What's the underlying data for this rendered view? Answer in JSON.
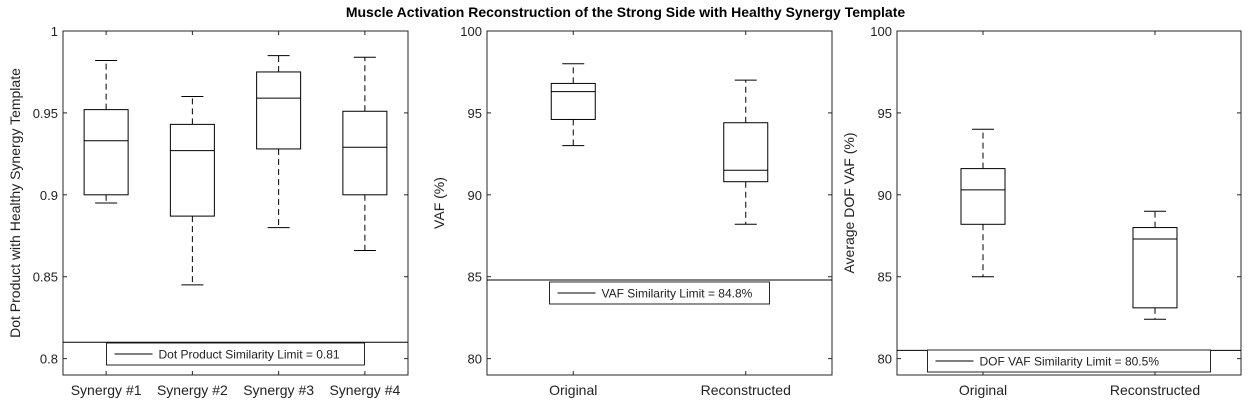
{
  "figure": {
    "title": "Muscle Activation Reconstruction of the Strong Side with Healthy Synergy Template"
  },
  "chart_data": [
    {
      "type": "box",
      "xlabel": "",
      "ylabel": "Dot Product with Healthy Synergy Template",
      "ylim": [
        0.79,
        1.0
      ],
      "yticks": [
        0.8,
        0.85,
        0.9,
        0.95,
        1.0
      ],
      "ytick_labels": [
        "0.8",
        "0.85",
        "0.9",
        "0.95",
        "1"
      ],
      "categories": [
        "Synergy #1",
        "Synergy #2",
        "Synergy #3",
        "Synergy #4"
      ],
      "boxes": [
        {
          "min": 0.895,
          "q1": 0.9,
          "median": 0.933,
          "q3": 0.952,
          "max": 0.982
        },
        {
          "min": 0.845,
          "q1": 0.887,
          "median": 0.927,
          "q3": 0.943,
          "max": 0.96
        },
        {
          "min": 0.88,
          "q1": 0.928,
          "median": 0.959,
          "q3": 0.975,
          "max": 0.985
        },
        {
          "min": 0.866,
          "q1": 0.9,
          "median": 0.929,
          "q3": 0.951,
          "max": 0.984
        }
      ],
      "reference_line": {
        "value": 0.81,
        "label": "Dot Product Similarity Limit = 0.81"
      },
      "grid": false,
      "legend_position": "bottom"
    },
    {
      "type": "box",
      "xlabel": "",
      "ylabel": "VAF (%)",
      "ylim": [
        79,
        100
      ],
      "yticks": [
        80,
        85,
        90,
        95,
        100
      ],
      "ytick_labels": [
        "80",
        "85",
        "90",
        "95",
        "100"
      ],
      "categories": [
        "Original",
        "Reconstructed"
      ],
      "boxes": [
        {
          "min": 93.0,
          "q1": 94.6,
          "median": 96.3,
          "q3": 96.8,
          "max": 98.0
        },
        {
          "min": 88.2,
          "q1": 90.8,
          "median": 91.5,
          "q3": 94.4,
          "max": 97.0
        }
      ],
      "reference_line": {
        "value": 84.8,
        "label": "VAF Similarity Limit = 84.8%"
      },
      "grid": false,
      "legend_position": "middle"
    },
    {
      "type": "box",
      "xlabel": "",
      "ylabel": "Average DOF VAF (%)",
      "ylim": [
        79,
        100
      ],
      "yticks": [
        80,
        85,
        90,
        95,
        100
      ],
      "ytick_labels": [
        "80",
        "85",
        "90",
        "95",
        "100"
      ],
      "categories": [
        "Original",
        "Reconstructed"
      ],
      "boxes": [
        {
          "min": 85.0,
          "q1": 88.2,
          "median": 90.3,
          "q3": 91.6,
          "max": 94.0
        },
        {
          "min": 82.4,
          "q1": 83.1,
          "median": 87.3,
          "q3": 88.0,
          "max": 89.0
        }
      ],
      "reference_line": {
        "value": 80.5,
        "label": "DOF VAF Similarity Limit = 80.5%"
      },
      "grid": false,
      "legend_position": "bottom"
    }
  ]
}
